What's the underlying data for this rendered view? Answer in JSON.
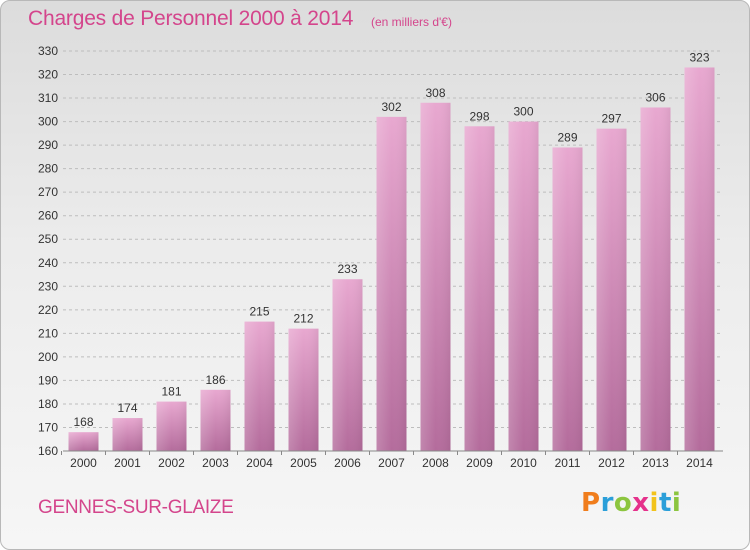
{
  "title": "Charges de Personnel 2000 à 2014",
  "unit_label": "(en milliers d'€)",
  "place_name": "GENNES-SUR-GLAIZE",
  "logo": {
    "letters": [
      "P",
      "r",
      "o",
      "x",
      "i",
      "t",
      "i"
    ],
    "colors": [
      "#f07d1c",
      "#2b9fd9",
      "#8cc53f",
      "#e5318b",
      "#f2c31b",
      "#2b9fd9",
      "#8cc53f"
    ]
  },
  "colors": {
    "title": "#d4458c",
    "bar_top": "#e8a8d0",
    "bar_bottom": "#b46c9c",
    "grid": "#bdbdbd",
    "axis_text": "#333333"
  },
  "chart_data": {
    "type": "bar",
    "title": "Charges de Personnel 2000 à 2014",
    "subtitle": "(en milliers d'€)",
    "categories": [
      "2000",
      "2001",
      "2002",
      "2003",
      "2004",
      "2005",
      "2006",
      "2007",
      "2008",
      "2009",
      "2010",
      "2011",
      "2012",
      "2013",
      "2014"
    ],
    "values": [
      168,
      174,
      181,
      186,
      215,
      212,
      233,
      302,
      308,
      298,
      300,
      289,
      297,
      306,
      323
    ],
    "ylim": [
      160,
      330
    ],
    "ytick_step": 10,
    "grid": "horizontal-dashed",
    "data_labels": true
  }
}
